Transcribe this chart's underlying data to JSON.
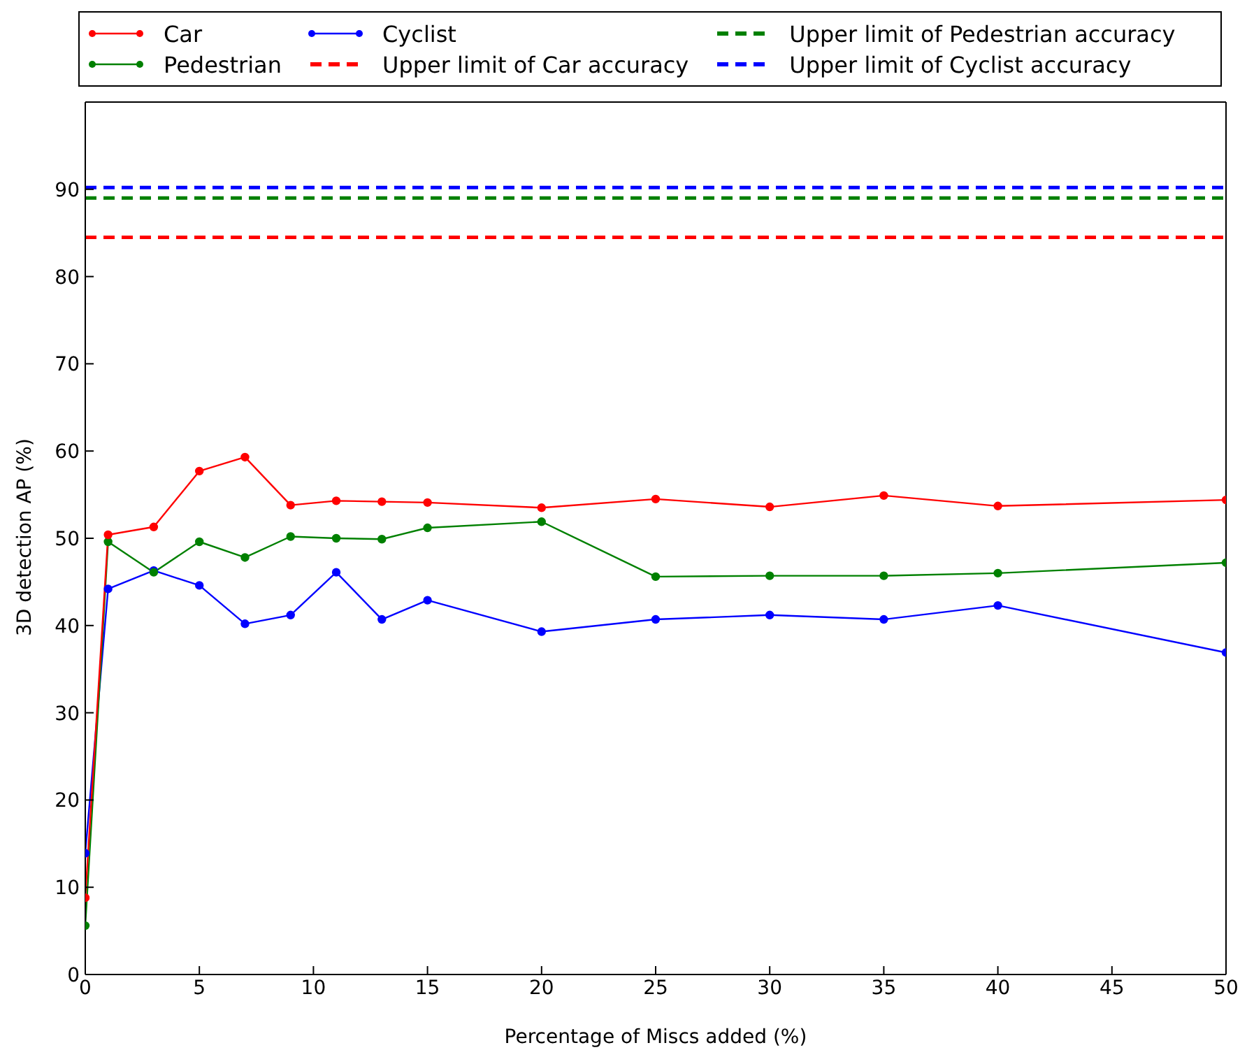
{
  "chart_data": {
    "type": "line",
    "xlabel": "Percentage of Miscs added (%)",
    "ylabel": "3D detection AP (%)",
    "x": [
      0,
      1,
      3,
      5,
      7,
      9,
      11,
      13,
      15,
      20,
      25,
      30,
      35,
      40,
      50
    ],
    "series": [
      {
        "name": "Car",
        "color": "#ff0000",
        "values": [
          8.8,
          50.4,
          51.3,
          57.7,
          59.3,
          53.8,
          54.3,
          54.2,
          54.1,
          53.5,
          54.5,
          53.6,
          54.9,
          53.7,
          54.4
        ]
      },
      {
        "name": "Pedestrian",
        "color": "#008000",
        "values": [
          5.6,
          49.6,
          46.1,
          49.6,
          47.8,
          50.2,
          50.0,
          49.9,
          51.2,
          51.9,
          45.6,
          45.7,
          45.7,
          46.0,
          47.2
        ]
      },
      {
        "name": "Cyclist",
        "color": "#0000ff",
        "values": [
          13.9,
          44.2,
          46.3,
          44.6,
          40.2,
          41.2,
          46.1,
          40.7,
          42.9,
          39.3,
          40.7,
          41.2,
          40.7,
          42.3,
          36.9
        ]
      }
    ],
    "ref_lines": [
      {
        "axis": "y",
        "value": 84.5,
        "label": "Upper limit of Car accuracy",
        "color": "#ff0000",
        "line_style": "dashed"
      },
      {
        "axis": "y",
        "value": 89.0,
        "label": "Upper limit of Pedestrian accuracy",
        "color": "#008000",
        "line_style": "dashed"
      },
      {
        "axis": "y",
        "value": 90.2,
        "label": "Upper limit of Cyclist accuracy",
        "color": "#0000ff",
        "line_style": "dashed"
      }
    ],
    "xlim": [
      0,
      50
    ],
    "xticks": [
      0,
      5,
      10,
      15,
      20,
      25,
      30,
      35,
      40,
      45,
      50
    ],
    "ylim": [
      0,
      100
    ],
    "yticks": [
      0,
      10,
      20,
      30,
      40,
      50,
      60,
      70,
      80,
      90
    ],
    "grid": false,
    "legend": "top",
    "marker": "circle",
    "line_style": "solid"
  }
}
